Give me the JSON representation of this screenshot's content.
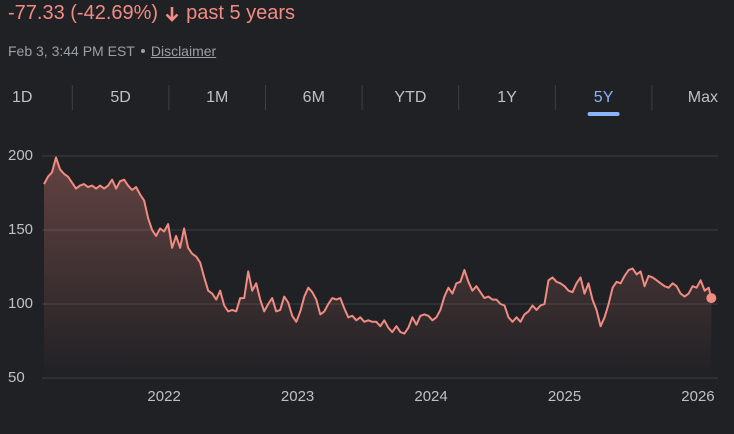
{
  "header": {
    "change": "-77.33 (-42.69%)",
    "period": "past 5 years",
    "timestamp": "Feb 3, 3:44 PM EST",
    "disclaimer": "Disclaimer"
  },
  "tabs": {
    "labels": [
      "1D",
      "5D",
      "1M",
      "6M",
      "YTD",
      "1Y",
      "5Y",
      "Max"
    ],
    "active": 6
  },
  "chart_data": {
    "type": "line",
    "x": [
      2021.1,
      2021.13,
      2021.16,
      2021.19,
      2021.22,
      2021.25,
      2021.28,
      2021.31,
      2021.34,
      2021.37,
      2021.4,
      2021.43,
      2021.46,
      2021.49,
      2021.52,
      2021.55,
      2021.58,
      2021.61,
      2021.64,
      2021.67,
      2021.7,
      2021.73,
      2021.76,
      2021.79,
      2021.82,
      2021.85,
      2021.88,
      2021.91,
      2021.94,
      2021.97,
      2022.0,
      2022.03,
      2022.06,
      2022.09,
      2022.12,
      2022.15,
      2022.18,
      2022.21,
      2022.24,
      2022.27,
      2022.3,
      2022.33,
      2022.36,
      2022.39,
      2022.42,
      2022.45,
      2022.48,
      2022.51,
      2022.54,
      2022.57,
      2022.6,
      2022.63,
      2022.66,
      2022.69,
      2022.72,
      2022.75,
      2022.78,
      2022.81,
      2022.84,
      2022.87,
      2022.9,
      2022.93,
      2022.96,
      2022.99,
      2023.02,
      2023.05,
      2023.08,
      2023.11,
      2023.14,
      2023.17,
      2023.2,
      2023.23,
      2023.26,
      2023.29,
      2023.32,
      2023.35,
      2023.38,
      2023.41,
      2023.44,
      2023.47,
      2023.5,
      2023.53,
      2023.56,
      2023.59,
      2023.62,
      2023.65,
      2023.68,
      2023.71,
      2023.74,
      2023.77,
      2023.8,
      2023.83,
      2023.86,
      2023.89,
      2023.92,
      2023.95,
      2023.98,
      2024.01,
      2024.04,
      2024.07,
      2024.1,
      2024.13,
      2024.16,
      2024.19,
      2024.22,
      2024.25,
      2024.28,
      2024.31,
      2024.34,
      2024.37,
      2024.4,
      2024.43,
      2024.46,
      2024.49,
      2024.52,
      2024.55,
      2024.58,
      2024.61,
      2024.64,
      2024.67,
      2024.7,
      2024.73,
      2024.76,
      2024.79,
      2024.82,
      2024.85,
      2024.88,
      2024.91,
      2024.94,
      2024.97,
      2025.0,
      2025.03,
      2025.06,
      2025.09,
      2025.12,
      2025.15,
      2025.18,
      2025.21,
      2025.24,
      2025.27,
      2025.3,
      2025.33,
      2025.36,
      2025.39,
      2025.42,
      2025.45,
      2025.48,
      2025.51,
      2025.54,
      2025.57,
      2025.6,
      2025.63,
      2025.66,
      2025.69,
      2025.72,
      2025.75,
      2025.78,
      2025.81,
      2025.84,
      2025.87,
      2025.9,
      2025.93,
      2025.96,
      2025.99,
      2026.02,
      2026.05,
      2026.08,
      2026.1
    ],
    "series": [
      {
        "color": "#f28b82",
        "values": [
          181,
          186,
          189,
          199,
          191,
          188,
          186,
          182,
          178,
          180,
          181,
          179,
          180,
          178,
          180,
          178,
          180,
          184,
          178,
          183,
          184,
          180,
          177,
          179,
          174,
          170,
          158,
          150,
          146,
          151,
          149,
          154,
          138,
          146,
          138,
          151,
          138,
          134,
          132,
          128,
          118,
          109,
          107,
          103,
          109,
          99,
          95,
          96,
          95,
          104,
          104,
          122,
          109,
          114,
          103,
          95,
          100,
          104,
          95,
          96,
          105,
          101,
          92,
          88,
          95,
          105,
          111,
          108,
          103,
          93,
          95,
          100,
          104,
          103,
          104,
          97,
          91,
          92,
          89,
          91,
          88,
          89,
          88,
          88,
          85,
          89,
          84,
          81,
          85,
          81,
          80,
          84,
          91,
          86,
          92,
          93,
          92,
          89,
          91,
          96,
          105,
          111,
          107,
          114,
          115,
          123,
          115,
          109,
          112,
          108,
          104,
          105,
          103,
          103,
          100,
          99,
          91,
          88,
          91,
          88,
          93,
          95,
          99,
          96,
          99,
          100,
          116,
          118,
          115,
          114,
          112,
          109,
          108,
          114,
          118,
          107,
          114,
          103,
          96,
          85,
          91,
          100,
          111,
          115,
          114,
          119,
          123,
          124,
          120,
          122,
          112,
          119,
          118,
          116,
          114,
          112,
          111,
          114,
          112,
          107,
          105,
          107,
          112,
          111,
          116,
          109,
          111,
          104
        ]
      }
    ],
    "xlim": [
      2021.07,
      2026.15
    ],
    "ylim": [
      50,
      200
    ],
    "xticks": [
      2022,
      2023,
      2024,
      2025,
      2026
    ],
    "yticks": [
      50,
      100,
      150,
      200
    ],
    "grid": true
  }
}
